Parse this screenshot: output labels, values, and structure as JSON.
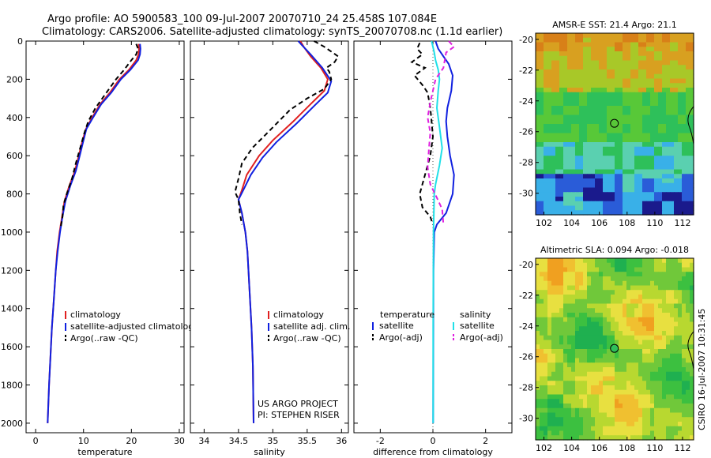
{
  "header": {
    "line1": "Argo profile: AO 5900583_100 09-Jul-2007 20070710_24 25.458S 107.084E",
    "line2": "Climatology: CARS2006. Satellite-adjusted climatology: synTS_20070708.nc (1.1d earlier)"
  },
  "side_label": "CSIRO 16-Jul-2007 10:31:45",
  "colors": {
    "climatology": "#e02020",
    "satellite": "#1020e0",
    "argo": "#000000",
    "satellite_salinity": "#20e0e8",
    "argo_salinity_adj": "#e020e0"
  },
  "chart_data": [
    {
      "type": "line",
      "id": "temperature",
      "xlabel": "temperature",
      "ylabel": "",
      "xlim": [
        -2,
        31
      ],
      "ylim": [
        2050,
        0
      ],
      "xticks": [
        0,
        10,
        20,
        30
      ],
      "yticks": [
        0,
        200,
        400,
        600,
        800,
        1000,
        1200,
        1400,
        1600,
        1800,
        2000
      ],
      "legend": [
        "climatology",
        "satellite-adjusted climatology",
        "Argo(..raw -QC)"
      ],
      "series": [
        {
          "name": "climatology",
          "color": "#e02020",
          "dash": "",
          "points": [
            [
              21.5,
              15
            ],
            [
              21.6,
              40
            ],
            [
              21.5,
              70
            ],
            [
              21.0,
              100
            ],
            [
              19.5,
              150
            ],
            [
              17.5,
              200
            ],
            [
              15.5,
              270
            ],
            [
              13.5,
              330
            ],
            [
              11.8,
              400
            ],
            [
              10.5,
              460
            ],
            [
              9.8,
              520
            ],
            [
              9.0,
              600
            ],
            [
              8.2,
              680
            ],
            [
              7.0,
              760
            ],
            [
              6.0,
              840
            ],
            [
              5.5,
              920
            ],
            [
              5.0,
              1000
            ],
            [
              4.5,
              1100
            ],
            [
              4.2,
              1200
            ],
            [
              3.8,
              1350
            ],
            [
              3.4,
              1500
            ],
            [
              3.1,
              1650
            ],
            [
              2.8,
              1800
            ],
            [
              2.5,
              2000
            ]
          ]
        },
        {
          "name": "satellite-adjusted climatology",
          "color": "#1020e0",
          "dash": "",
          "points": [
            [
              21.8,
              15
            ],
            [
              21.9,
              40
            ],
            [
              21.8,
              70
            ],
            [
              21.4,
              100
            ],
            [
              19.8,
              150
            ],
            [
              17.8,
              200
            ],
            [
              15.8,
              270
            ],
            [
              13.7,
              330
            ],
            [
              12.0,
              400
            ],
            [
              10.6,
              460
            ],
            [
              10.0,
              520
            ],
            [
              9.2,
              600
            ],
            [
              8.4,
              680
            ],
            [
              7.2,
              760
            ],
            [
              6.2,
              840
            ],
            [
              5.6,
              920
            ],
            [
              5.1,
              1000
            ],
            [
              4.6,
              1100
            ],
            [
              4.2,
              1200
            ],
            [
              3.8,
              1350
            ],
            [
              3.4,
              1500
            ],
            [
              3.1,
              1650
            ],
            [
              2.8,
              1800
            ],
            [
              2.5,
              2000
            ]
          ]
        },
        {
          "name": "Argo(..raw -QC)",
          "color": "#000000",
          "dash": "6,4",
          "points": [
            [
              21.0,
              15
            ],
            [
              21.4,
              40
            ],
            [
              21.0,
              70
            ],
            [
              20.0,
              100
            ],
            [
              18.5,
              150
            ],
            [
              16.8,
              200
            ],
            [
              14.5,
              280
            ],
            [
              12.5,
              350
            ],
            [
              11.0,
              420
            ],
            [
              10.2,
              480
            ],
            [
              9.3,
              560
            ],
            [
              8.4,
              640
            ],
            [
              7.6,
              720
            ],
            [
              6.5,
              800
            ],
            [
              5.8,
              860
            ],
            [
              5.6,
              920
            ],
            [
              5.2,
              980
            ]
          ]
        }
      ]
    },
    {
      "type": "line",
      "id": "salinity",
      "xlabel": "salinity",
      "ylabel": "",
      "xlim": [
        33.8,
        36.1
      ],
      "ylim": [
        2050,
        0
      ],
      "xticks": [
        34,
        34.5,
        35,
        35.5,
        36
      ],
      "legend": [
        "climatology",
        "satellite adj. clim.",
        "Argo(..raw -QC)"
      ],
      "annotation": [
        "US ARGO PROJECT",
        "PI: STEPHEN RISER"
      ],
      "series": [
        {
          "name": "climatology",
          "color": "#e02020",
          "dash": "",
          "points": [
            [
              35.4,
              0
            ],
            [
              35.45,
              30
            ],
            [
              35.55,
              80
            ],
            [
              35.7,
              140
            ],
            [
              35.8,
              200
            ],
            [
              35.75,
              260
            ],
            [
              35.55,
              330
            ],
            [
              35.3,
              420
            ],
            [
              35.0,
              520
            ],
            [
              34.8,
              600
            ],
            [
              34.62,
              700
            ],
            [
              34.55,
              780
            ],
            [
              34.5,
              830
            ],
            [
              34.55,
              900
            ],
            [
              34.6,
              1000
            ],
            [
              34.63,
              1100
            ],
            [
              34.66,
              1300
            ],
            [
              34.69,
              1500
            ],
            [
              34.71,
              1700
            ],
            [
              34.72,
              2000
            ]
          ]
        },
        {
          "name": "satellite adj. clim.",
          "color": "#1020e0",
          "dash": "",
          "points": [
            [
              35.37,
              0
            ],
            [
              35.42,
              20
            ],
            [
              35.55,
              70
            ],
            [
              35.72,
              140
            ],
            [
              35.85,
              210
            ],
            [
              35.8,
              270
            ],
            [
              35.6,
              340
            ],
            [
              35.35,
              430
            ],
            [
              35.05,
              530
            ],
            [
              34.85,
              610
            ],
            [
              34.68,
              700
            ],
            [
              34.57,
              780
            ],
            [
              34.5,
              830
            ],
            [
              34.55,
              900
            ],
            [
              34.6,
              1000
            ],
            [
              34.63,
              1100
            ],
            [
              34.66,
              1300
            ],
            [
              34.69,
              1500
            ],
            [
              34.71,
              1700
            ],
            [
              34.72,
              2000
            ]
          ]
        },
        {
          "name": "Argo(..raw -QC)",
          "color": "#000000",
          "dash": "6,4",
          "points": [
            [
              35.6,
              0
            ],
            [
              35.75,
              30
            ],
            [
              35.95,
              80
            ],
            [
              35.9,
              110
            ],
            [
              35.78,
              140
            ],
            [
              35.82,
              160
            ],
            [
              35.85,
              200
            ],
            [
              35.75,
              250
            ],
            [
              35.5,
              300
            ],
            [
              35.25,
              360
            ],
            [
              34.95,
              470
            ],
            [
              34.7,
              560
            ],
            [
              34.55,
              640
            ],
            [
              34.5,
              720
            ],
            [
              34.45,
              790
            ],
            [
              34.5,
              830
            ],
            [
              34.52,
              900
            ],
            [
              34.55,
              960
            ]
          ]
        }
      ]
    },
    {
      "type": "line",
      "id": "difference",
      "xlabel": "difference from climatology",
      "ylabel": "",
      "xlim": [
        -3,
        3
      ],
      "ylim": [
        2050,
        0
      ],
      "xticks": [
        -2,
        0,
        2
      ],
      "legend_groups": [
        {
          "title": "temperature",
          "items": [
            "satellite",
            "Argo(-adj)"
          ]
        },
        {
          "title": "salinity",
          "items": [
            "satellite",
            "Argo(-adj)"
          ]
        }
      ],
      "series": [
        {
          "name": "temperature satellite",
          "color": "#1020e0",
          "dash": "",
          "points": [
            [
              0.1,
              0
            ],
            [
              0.2,
              40
            ],
            [
              0.4,
              80
            ],
            [
              0.6,
              120
            ],
            [
              0.75,
              180
            ],
            [
              0.7,
              260
            ],
            [
              0.55,
              350
            ],
            [
              0.5,
              420
            ],
            [
              0.55,
              500
            ],
            [
              0.65,
              600
            ],
            [
              0.8,
              700
            ],
            [
              0.75,
              800
            ],
            [
              0.5,
              900
            ],
            [
              0.15,
              960
            ],
            [
              0.05,
              1000
            ],
            [
              0.02,
              1200
            ],
            [
              0.01,
              2000
            ]
          ]
        },
        {
          "name": "temperature Argo(-adj)",
          "color": "#000000",
          "dash": "6,4",
          "points": [
            [
              -0.5,
              10
            ],
            [
              -0.6,
              40
            ],
            [
              -0.4,
              70
            ],
            [
              -0.8,
              110
            ],
            [
              -0.3,
              140
            ],
            [
              -0.7,
              180
            ],
            [
              -0.4,
              230
            ],
            [
              -0.2,
              270
            ],
            [
              -0.1,
              350
            ],
            [
              -0.05,
              420
            ],
            [
              0.0,
              500
            ],
            [
              -0.1,
              600
            ],
            [
              -0.3,
              700
            ],
            [
              -0.5,
              800
            ],
            [
              -0.4,
              870
            ],
            [
              -0.1,
              920
            ],
            [
              0.0,
              960
            ]
          ]
        },
        {
          "name": "salinity satellite",
          "color": "#20e0e8",
          "dash": "",
          "points": [
            [
              -0.05,
              0
            ],
            [
              0.05,
              60
            ],
            [
              0.1,
              100
            ],
            [
              0.2,
              150
            ],
            [
              0.25,
              200
            ],
            [
              0.2,
              260
            ],
            [
              0.15,
              350
            ],
            [
              0.25,
              450
            ],
            [
              0.35,
              560
            ],
            [
              0.25,
              650
            ],
            [
              0.1,
              750
            ],
            [
              0.05,
              800
            ],
            [
              0.02,
              1000
            ],
            [
              0.01,
              1500
            ],
            [
              0.01,
              2000
            ]
          ]
        },
        {
          "name": "salinity Argo(-adj)",
          "color": "#e020e0",
          "dash": "6,4",
          "points": [
            [
              0.6,
              0
            ],
            [
              0.8,
              30
            ],
            [
              0.5,
              60
            ],
            [
              0.45,
              100
            ],
            [
              0.4,
              140
            ],
            [
              0.1,
              200
            ],
            [
              0.0,
              260
            ],
            [
              -0.1,
              320
            ],
            [
              -0.2,
              400
            ],
            [
              -0.1,
              480
            ],
            [
              -0.15,
              560
            ],
            [
              -0.2,
              660
            ],
            [
              -0.1,
              750
            ],
            [
              0.15,
              820
            ],
            [
              0.35,
              880
            ],
            [
              0.4,
              960
            ]
          ]
        }
      ]
    },
    {
      "type": "heatmap",
      "id": "sst_map",
      "title": "AMSR-E SST: 21.4  Argo: 21.1",
      "xticks": [
        102,
        104,
        106,
        108,
        110,
        112
      ],
      "yticks": [
        -20,
        -22,
        -24,
        -26,
        -28,
        -30
      ],
      "xlim": [
        101.4,
        112.8
      ],
      "ylim": [
        -31.4,
        -19.6
      ],
      "marker": {
        "lon": 107.084,
        "lat": -25.458
      },
      "colormap": [
        "#1a1a8c",
        "#2a5cd8",
        "#39b0e8",
        "#5ad0b0",
        "#2ec05a",
        "#58c838",
        "#a8c828",
        "#d8a020",
        "#d88018"
      ]
    },
    {
      "type": "heatmap",
      "id": "sla_map",
      "title": "Altimetric SLA: 0.094  Argo: -0.018",
      "xticks": [
        102,
        104,
        106,
        108,
        110,
        112
      ],
      "yticks": [
        -20,
        -22,
        -24,
        -26,
        -28,
        -30
      ],
      "xlim": [
        101.4,
        112.8
      ],
      "ylim": [
        -31.4,
        -19.6
      ],
      "marker": {
        "lon": 107.084,
        "lat": -25.458
      },
      "colormap": [
        "#1fb050",
        "#3cc040",
        "#70c83a",
        "#b8d830",
        "#e8e040",
        "#f0c030",
        "#f0a020"
      ]
    }
  ]
}
